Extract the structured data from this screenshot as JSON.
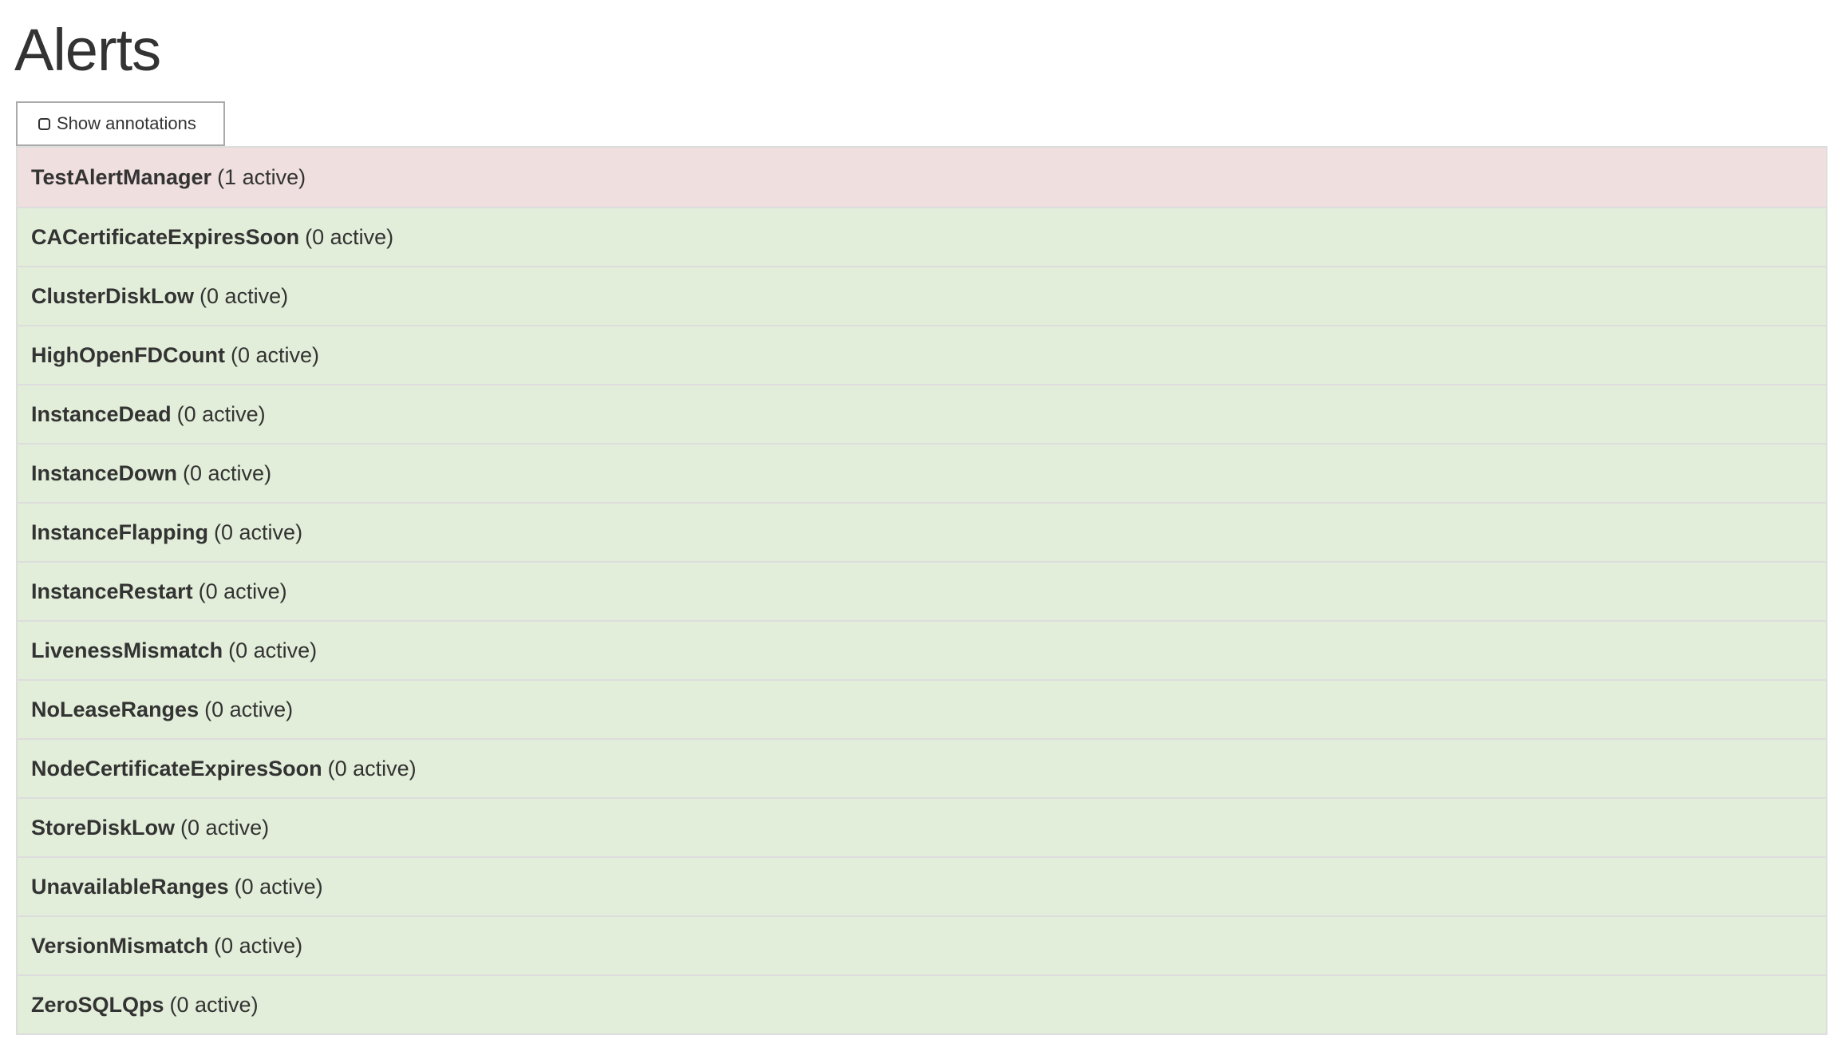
{
  "title": "Alerts",
  "show_annotations": {
    "label": "Show annotations",
    "checked": false
  },
  "colors": {
    "firing": "#f0dfdf",
    "inactive": "#e2eed9",
    "border": "#dddddd",
    "text": "#333333"
  },
  "alerts": [
    {
      "name": "TestAlertManager",
      "count": "(1 active)",
      "state": "firing"
    },
    {
      "name": "CACertificateExpiresSoon",
      "count": "(0 active)",
      "state": "inactive"
    },
    {
      "name": "ClusterDiskLow",
      "count": "(0 active)",
      "state": "inactive"
    },
    {
      "name": "HighOpenFDCount",
      "count": "(0 active)",
      "state": "inactive"
    },
    {
      "name": "InstanceDead",
      "count": "(0 active)",
      "state": "inactive"
    },
    {
      "name": "InstanceDown",
      "count": "(0 active)",
      "state": "inactive"
    },
    {
      "name": "InstanceFlapping",
      "count": "(0 active)",
      "state": "inactive"
    },
    {
      "name": "InstanceRestart",
      "count": "(0 active)",
      "state": "inactive"
    },
    {
      "name": "LivenessMismatch",
      "count": "(0 active)",
      "state": "inactive"
    },
    {
      "name": "NoLeaseRanges",
      "count": "(0 active)",
      "state": "inactive"
    },
    {
      "name": "NodeCertificateExpiresSoon",
      "count": "(0 active)",
      "state": "inactive"
    },
    {
      "name": "StoreDiskLow",
      "count": "(0 active)",
      "state": "inactive"
    },
    {
      "name": "UnavailableRanges",
      "count": "(0 active)",
      "state": "inactive"
    },
    {
      "name": "VersionMismatch",
      "count": "(0 active)",
      "state": "inactive"
    },
    {
      "name": "ZeroSQLQps",
      "count": "(0 active)",
      "state": "inactive"
    }
  ]
}
